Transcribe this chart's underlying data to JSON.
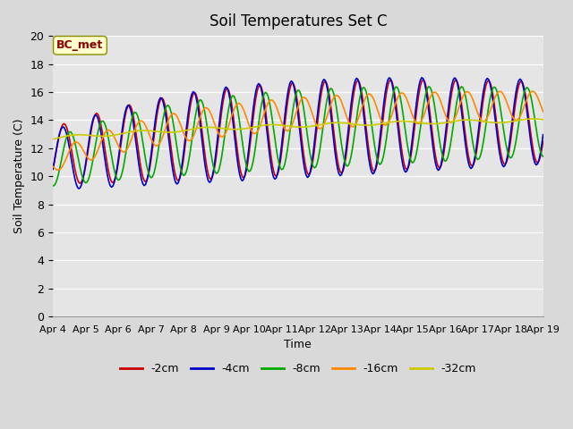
{
  "title": "Soil Temperatures Set C",
  "xlabel": "Time",
  "ylabel": "Soil Temperature (C)",
  "ylim": [
    0,
    20
  ],
  "yticks": [
    0,
    2,
    4,
    6,
    8,
    10,
    12,
    14,
    16,
    18,
    20
  ],
  "x_labels": [
    "Apr 4",
    "Apr 5",
    "Apr 6",
    "Apr 7",
    "Apr 8",
    "Apr 9",
    "Apr 10",
    "Apr 11",
    "Apr 12",
    "Apr 13",
    "Apr 14",
    "Apr 15",
    "Apr 16",
    "Apr 17",
    "Apr 18",
    "Apr 19"
  ],
  "annotation": "BC_met",
  "series": {
    "-2cm": {
      "color": "#cc0000",
      "linewidth": 1.2
    },
    "-4cm": {
      "color": "#0000cc",
      "linewidth": 1.2
    },
    "-8cm": {
      "color": "#00aa00",
      "linewidth": 1.2
    },
    "-16cm": {
      "color": "#ff8800",
      "linewidth": 1.2
    },
    "-32cm": {
      "color": "#cccc00",
      "linewidth": 1.2
    }
  },
  "legend_order": [
    "-2cm",
    "-4cm",
    "-8cm",
    "-16cm",
    "-32cm"
  ],
  "background_color": "#d9d9d9",
  "plot_bg_color": "#e5e5e5"
}
